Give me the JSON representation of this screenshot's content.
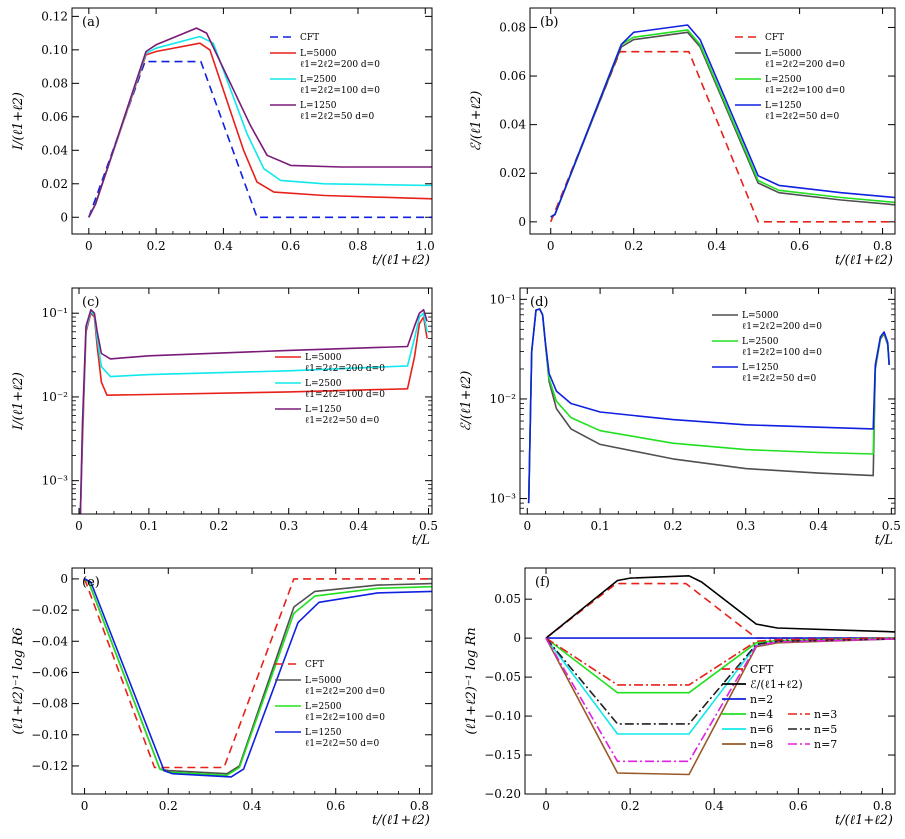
{
  "colors": {
    "black": "#000000",
    "red": "#e8201a",
    "cyan": "#10e8ec",
    "purple": "#7a1a78",
    "blue": "#1020e0",
    "green": "#20e020",
    "gray": "#505050",
    "brown": "#9a5a28",
    "magenta": "#e020e0",
    "dark": "#202020"
  },
  "chart_data": [
    {
      "id": "a",
      "type": "line",
      "panel_label": "(a)",
      "xlabel": "t/(ℓ1+ℓ2)",
      "ylabel": "I/(ℓ1+ℓ2)",
      "xlim": [
        -0.05,
        1.02
      ],
      "ylim": [
        -0.01,
        0.125
      ],
      "xticks": [
        0,
        0.2,
        0.4,
        0.6,
        0.8,
        1.0
      ],
      "xtick_labels": [
        "0",
        "0.2",
        "0.4",
        "0.6",
        "0.8",
        "1.0"
      ],
      "yticks": [
        0,
        0.02,
        0.04,
        0.06,
        0.08,
        0.1,
        0.12
      ],
      "ytick_labels": [
        "0",
        "0.02",
        "0.04",
        "0.06",
        "0.08",
        "0.10",
        "0.12"
      ],
      "series": [
        {
          "name": "CFT",
          "color": "blue",
          "dash": "dashed",
          "x": [
            0,
            0.167,
            0.333,
            0.5,
            1.02
          ],
          "y": [
            0,
            0.093,
            0.093,
            0,
            0
          ]
        },
        {
          "name": "L=5000",
          "sub": "ℓ1=2ℓ2=200  d=0",
          "color": "red",
          "x": [
            0,
            0.02,
            0.17,
            0.2,
            0.33,
            0.36,
            0.46,
            0.5,
            0.55,
            0.7,
            1.02
          ],
          "y": [
            0,
            0.008,
            0.097,
            0.099,
            0.104,
            0.1,
            0.04,
            0.021,
            0.015,
            0.013,
            0.011
          ]
        },
        {
          "name": "L=2500",
          "sub": "ℓ1=2ℓ2=100  d=0",
          "color": "cyan",
          "x": [
            0,
            0.02,
            0.17,
            0.2,
            0.33,
            0.37,
            0.47,
            0.52,
            0.57,
            0.7,
            1.02
          ],
          "y": [
            0,
            0.008,
            0.098,
            0.101,
            0.108,
            0.104,
            0.05,
            0.029,
            0.022,
            0.02,
            0.019
          ]
        },
        {
          "name": "L=1250",
          "sub": "ℓ1=2ℓ2=50    d=0",
          "color": "purple",
          "x": [
            0,
            0.02,
            0.17,
            0.2,
            0.32,
            0.35,
            0.48,
            0.53,
            0.6,
            0.75,
            1.02
          ],
          "y": [
            0,
            0.008,
            0.099,
            0.103,
            0.113,
            0.11,
            0.055,
            0.037,
            0.031,
            0.03,
            0.03
          ]
        }
      ]
    },
    {
      "id": "b",
      "type": "line",
      "panel_label": "(b)",
      "xlabel": "t/(ℓ1+ℓ2)",
      "ylabel": "ℰ/(ℓ1+ℓ2)",
      "xlim": [
        -0.05,
        0.83
      ],
      "ylim": [
        -0.005,
        0.088
      ],
      "xticks": [
        0,
        0.2,
        0.4,
        0.6,
        0.8
      ],
      "xtick_labels": [
        "0",
        "0.2",
        "0.4",
        "0.6",
        "0.8"
      ],
      "yticks": [
        0,
        0.02,
        0.04,
        0.06,
        0.08
      ],
      "ytick_labels": [
        "0",
        "0.02",
        "0.04",
        "0.06",
        "0.08"
      ],
      "series": [
        {
          "name": "CFT",
          "color": "red",
          "dash": "dashed",
          "x": [
            0,
            0.167,
            0.333,
            0.5,
            0.83
          ],
          "y": [
            0,
            0.07,
            0.07,
            0,
            0
          ]
        },
        {
          "name": "L=5000",
          "sub": "ℓ1=2ℓ2=200  d=0",
          "color": "gray",
          "x": [
            0,
            0.01,
            0.17,
            0.2,
            0.33,
            0.36,
            0.5,
            0.55,
            0.7,
            0.83
          ],
          "y": [
            0.002,
            0.003,
            0.072,
            0.075,
            0.078,
            0.072,
            0.016,
            0.012,
            0.009,
            0.007
          ]
        },
        {
          "name": "L=2500",
          "sub": "ℓ1=2ℓ2=100  d=0",
          "color": "green",
          "x": [
            0,
            0.01,
            0.17,
            0.2,
            0.33,
            0.36,
            0.5,
            0.55,
            0.7,
            0.83
          ],
          "y": [
            0.002,
            0.003,
            0.073,
            0.076,
            0.079,
            0.073,
            0.017,
            0.013,
            0.01,
            0.008
          ]
        },
        {
          "name": "L=1250",
          "sub": "ℓ1=2ℓ2=50    d=0",
          "color": "blue",
          "x": [
            0,
            0.01,
            0.17,
            0.2,
            0.33,
            0.36,
            0.5,
            0.55,
            0.7,
            0.83
          ],
          "y": [
            0.002,
            0.003,
            0.073,
            0.078,
            0.081,
            0.075,
            0.019,
            0.015,
            0.012,
            0.01
          ]
        }
      ]
    },
    {
      "id": "c",
      "type": "line",
      "panel_label": "(c)",
      "xlabel": "t/L",
      "ylabel": "I/(ℓ1+ℓ2)",
      "yscale": "log",
      "xlim": [
        -0.01,
        0.505
      ],
      "ylim": [
        0.0004,
        0.2
      ],
      "xticks": [
        0,
        0.1,
        0.2,
        0.3,
        0.4,
        0.5
      ],
      "xtick_labels": [
        "0",
        "0.1",
        "0.2",
        "0.3",
        "0.4",
        "0.5"
      ],
      "yticks": [
        0.001,
        0.01,
        0.1
      ],
      "ytick_labels": [
        "10⁻³",
        "10⁻²",
        "10⁻¹"
      ],
      "series": [
        {
          "name": "L=5000",
          "sub": "ℓ1=2ℓ2=200  d=0",
          "color": "red",
          "x": [
            0.002,
            0.005,
            0.01,
            0.017,
            0.022,
            0.026,
            0.032,
            0.04,
            0.1,
            0.3,
            0.47,
            0.48,
            0.487,
            0.493,
            0.498
          ],
          "y": [
            0.0004,
            0.003,
            0.06,
            0.1,
            0.09,
            0.04,
            0.015,
            0.0105,
            0.0107,
            0.0115,
            0.0125,
            0.03,
            0.075,
            0.09,
            0.05
          ]
        },
        {
          "name": "L=2500",
          "sub": "ℓ1=2ℓ2=100  d=0",
          "color": "cyan",
          "x": [
            0.002,
            0.005,
            0.01,
            0.017,
            0.022,
            0.026,
            0.032,
            0.045,
            0.1,
            0.3,
            0.47,
            0.48,
            0.487,
            0.493,
            0.498
          ],
          "y": [
            0.0004,
            0.004,
            0.065,
            0.105,
            0.095,
            0.05,
            0.023,
            0.0175,
            0.0185,
            0.0205,
            0.0235,
            0.05,
            0.09,
            0.1,
            0.06
          ]
        },
        {
          "name": "L=1250",
          "sub": "ℓ1=2ℓ2=50    d=0",
          "color": "purple",
          "x": [
            0.002,
            0.005,
            0.01,
            0.017,
            0.022,
            0.026,
            0.032,
            0.045,
            0.1,
            0.3,
            0.47,
            0.48,
            0.487,
            0.493,
            0.498
          ],
          "y": [
            0.0004,
            0.005,
            0.07,
            0.11,
            0.1,
            0.06,
            0.033,
            0.0285,
            0.031,
            0.036,
            0.04,
            0.07,
            0.1,
            0.11,
            0.08
          ]
        }
      ]
    },
    {
      "id": "d",
      "type": "line",
      "panel_label": "(d)",
      "xlabel": "t/L",
      "ylabel": "ℰ/(ℓ1+ℓ2)",
      "yscale": "log",
      "xlim": [
        -0.01,
        0.505
      ],
      "ylim": [
        0.0007,
        0.13
      ],
      "xticks": [
        0,
        0.1,
        0.2,
        0.3,
        0.4,
        0.5
      ],
      "xtick_labels": [
        "0",
        "0.1",
        "0.2",
        "0.3",
        "0.4",
        "0.5"
      ],
      "yticks": [
        0.001,
        0.01,
        0.1
      ],
      "ytick_labels": [
        "10⁻³",
        "10⁻²",
        "10⁻¹"
      ],
      "series": [
        {
          "name": "L=5000",
          "sub": "ℓ1=2ℓ2=200  d=0",
          "color": "gray",
          "x": [
            0.002,
            0.006,
            0.012,
            0.017,
            0.021,
            0.025,
            0.03,
            0.04,
            0.06,
            0.1,
            0.2,
            0.3,
            0.4,
            0.475,
            0.478,
            0.485,
            0.49,
            0.495,
            0.497
          ],
          "y": [
            0.0009,
            0.03,
            0.078,
            0.08,
            0.07,
            0.035,
            0.015,
            0.008,
            0.005,
            0.0035,
            0.0025,
            0.002,
            0.0018,
            0.0017,
            0.02,
            0.04,
            0.045,
            0.035,
            0.022
          ]
        },
        {
          "name": "L=2500",
          "sub": "ℓ1=2ℓ2=100  d=0",
          "color": "green",
          "x": [
            0.002,
            0.006,
            0.012,
            0.017,
            0.021,
            0.025,
            0.03,
            0.04,
            0.06,
            0.1,
            0.2,
            0.3,
            0.4,
            0.475,
            0.478,
            0.485,
            0.49,
            0.495,
            0.497
          ],
          "y": [
            0.0009,
            0.03,
            0.078,
            0.08,
            0.07,
            0.035,
            0.016,
            0.0095,
            0.0065,
            0.0048,
            0.0036,
            0.0031,
            0.0029,
            0.0028,
            0.021,
            0.041,
            0.046,
            0.036,
            0.022
          ]
        },
        {
          "name": "L=1250",
          "sub": "ℓ1=2ℓ2=50    d=0",
          "color": "blue",
          "x": [
            0.002,
            0.006,
            0.012,
            0.017,
            0.021,
            0.025,
            0.03,
            0.04,
            0.06,
            0.1,
            0.2,
            0.3,
            0.4,
            0.475,
            0.478,
            0.485,
            0.49,
            0.495,
            0.497
          ],
          "y": [
            0.0009,
            0.03,
            0.078,
            0.08,
            0.07,
            0.036,
            0.018,
            0.012,
            0.009,
            0.0074,
            0.0062,
            0.0055,
            0.0052,
            0.005,
            0.022,
            0.042,
            0.047,
            0.037,
            0.022
          ]
        }
      ]
    },
    {
      "id": "e",
      "type": "line",
      "panel_label": "(e)",
      "xlabel": "t/(ℓ1+ℓ2)",
      "ylabel": "(ℓ1+ℓ2)⁻¹ log R6",
      "xlim": [
        -0.03,
        0.83
      ],
      "ylim": [
        -0.138,
        0.007
      ],
      "xticks": [
        0,
        0.2,
        0.4,
        0.6,
        0.8
      ],
      "xtick_labels": [
        "0",
        "0.2",
        "0.4",
        "0.6",
        "0.8"
      ],
      "yticks": [
        0,
        -0.02,
        -0.04,
        -0.06,
        -0.08,
        -0.1,
        -0.12
      ],
      "ytick_labels": [
        "0",
        "−0.02",
        "−0.04",
        "−0.06",
        "−0.08",
        "−0.10",
        "−0.12"
      ],
      "series": [
        {
          "name": "CFT",
          "color": "red",
          "dash": "dashed",
          "x": [
            0,
            0.167,
            0.333,
            0.5,
            0.83
          ],
          "y": [
            0,
            -0.121,
            -0.121,
            0,
            0
          ]
        },
        {
          "name": "L=5000",
          "sub": "ℓ1=2ℓ2=200  d=0",
          "color": "gray",
          "x": [
            0,
            0.01,
            0.18,
            0.2,
            0.34,
            0.37,
            0.5,
            0.55,
            0.7,
            0.83
          ],
          "y": [
            0,
            -0.002,
            -0.122,
            -0.123,
            -0.125,
            -0.12,
            -0.018,
            -0.008,
            -0.004,
            -0.003
          ]
        },
        {
          "name": "L=2500",
          "sub": "ℓ1=2ℓ2=100  d=0",
          "color": "green",
          "x": [
            0,
            0.01,
            0.18,
            0.2,
            0.34,
            0.37,
            0.5,
            0.55,
            0.7,
            0.83
          ],
          "y": [
            0,
            -0.002,
            -0.122,
            -0.124,
            -0.126,
            -0.121,
            -0.022,
            -0.011,
            -0.006,
            -0.005
          ]
        },
        {
          "name": "L=1250",
          "sub": "ℓ1=2ℓ2=50    d=0",
          "color": "blue",
          "x": [
            0,
            0.015,
            0.19,
            0.21,
            0.35,
            0.38,
            0.51,
            0.56,
            0.7,
            0.83
          ],
          "y": [
            0,
            -0.002,
            -0.123,
            -0.125,
            -0.127,
            -0.122,
            -0.028,
            -0.015,
            -0.009,
            -0.008
          ]
        }
      ]
    },
    {
      "id": "f",
      "type": "line",
      "panel_label": "(f)",
      "xlabel": "t/(ℓ1+ℓ2)",
      "ylabel": "(ℓ1+ℓ2)⁻¹ log Rn",
      "xlim": [
        -0.05,
        0.83
      ],
      "ylim": [
        -0.2,
        0.09
      ],
      "xticks": [
        0,
        0.2,
        0.4,
        0.6,
        0.8
      ],
      "xtick_labels": [
        "0",
        "0.2",
        "0.4",
        "0.6",
        "0.8"
      ],
      "yticks": [
        0.05,
        0,
        -0.05,
        -0.1,
        -0.15,
        -0.2
      ],
      "ytick_labels": [
        "0.05",
        "0",
        "−0.05",
        "−0.10",
        "−0.15",
        "−0.20"
      ],
      "series": [
        {
          "name": "CFT",
          "color": "red",
          "dash": "dashed",
          "x": [
            0,
            0.167,
            0.333,
            0.5,
            0.83
          ],
          "y": [
            0,
            0.07,
            0.07,
            0,
            0
          ]
        },
        {
          "name": "ℰ/(ℓ1+ℓ2)",
          "color": "black",
          "x": [
            0,
            0.17,
            0.2,
            0.34,
            0.37,
            0.5,
            0.55,
            0.83
          ],
          "y": [
            0,
            0.074,
            0.077,
            0.08,
            0.072,
            0.018,
            0.013,
            0.008
          ]
        },
        {
          "name": "n=2",
          "color": "blue",
          "x": [
            0,
            0.83
          ],
          "y": [
            0,
            0
          ]
        },
        {
          "name": "n=4",
          "color": "green",
          "x": [
            0,
            0.17,
            0.34,
            0.5,
            0.55,
            0.83
          ],
          "y": [
            0,
            -0.07,
            -0.07,
            -0.006,
            -0.003,
            0
          ]
        },
        {
          "name": "n=6",
          "color": "cyan",
          "x": [
            0,
            0.17,
            0.34,
            0.5,
            0.55,
            0.83
          ],
          "y": [
            0,
            -0.123,
            -0.123,
            -0.009,
            -0.005,
            -0.001
          ]
        },
        {
          "name": "n=8",
          "color": "brown",
          "x": [
            0,
            0.17,
            0.34,
            0.5,
            0.55,
            0.83
          ],
          "y": [
            0,
            -0.173,
            -0.175,
            -0.011,
            -0.006,
            -0.001
          ]
        },
        {
          "name": "n=3",
          "color": "red",
          "dash": "dashdot",
          "x": [
            0,
            0.17,
            0.34,
            0.5,
            0.55,
            0.83
          ],
          "y": [
            0,
            -0.06,
            -0.06,
            -0.004,
            -0.002,
            0
          ]
        },
        {
          "name": "n=5",
          "color": "dark",
          "dash": "dashdot",
          "x": [
            0,
            0.17,
            0.34,
            0.5,
            0.55,
            0.83
          ],
          "y": [
            0,
            -0.11,
            -0.11,
            -0.008,
            -0.004,
            -0.001
          ]
        },
        {
          "name": "n=7",
          "color": "magenta",
          "dash": "dashdot",
          "x": [
            0,
            0.17,
            0.34,
            0.5,
            0.55,
            0.83
          ],
          "y": [
            0,
            -0.158,
            -0.158,
            -0.01,
            -0.005,
            -0.001
          ]
        }
      ]
    }
  ]
}
